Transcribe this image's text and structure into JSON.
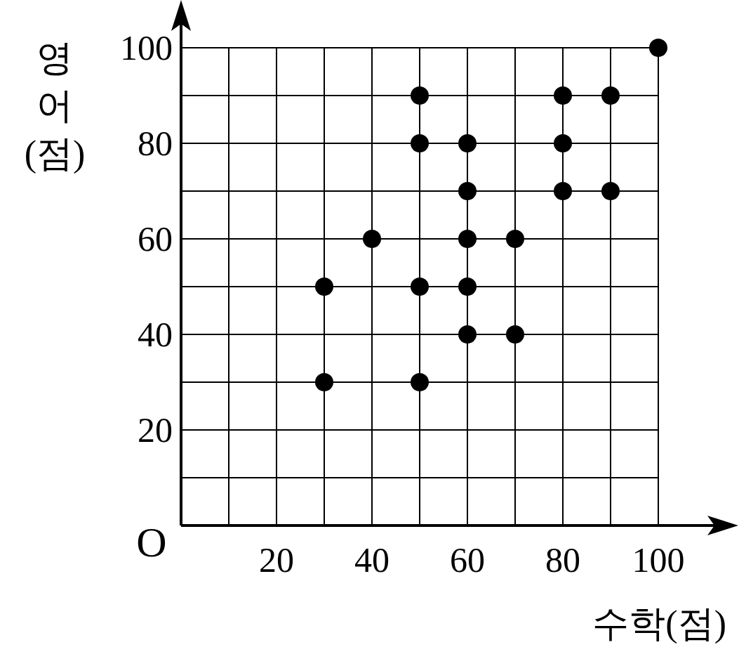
{
  "chart_data": {
    "type": "scatter",
    "xlabel": "수학(점)",
    "ylabel": "영어(점)",
    "xlim": [
      0,
      100
    ],
    "ylim": [
      0,
      100
    ],
    "annotations": [
      "O"
    ],
    "xticks": [
      {
        "value": 10,
        "label": null
      },
      20,
      {
        "value": 30,
        "label": null
      },
      40,
      {
        "value": 50,
        "label": null
      },
      60,
      {
        "value": 70,
        "label": null
      },
      80,
      {
        "value": 90,
        "label": null
      },
      100
    ],
    "yticks": [
      {
        "value": 10,
        "label": null
      },
      20,
      {
        "value": 30,
        "label": null
      },
      40,
      {
        "value": 50,
        "label": null
      },
      60,
      {
        "value": 70,
        "label": null
      },
      80,
      {
        "value": 90,
        "label": null
      },
      100
    ],
    "grid": true,
    "marker": "circle",
    "series": [
      {
        "color": "#000000",
        "x": [
          30,
          30,
          40,
          50,
          50,
          50,
          50,
          60,
          60,
          60,
          60,
          60,
          70,
          70,
          80,
          80,
          80,
          90,
          90,
          100
        ],
        "values": [
          50,
          30,
          60,
          90,
          80,
          50,
          30,
          80,
          70,
          60,
          50,
          40,
          60,
          40,
          90,
          80,
          70,
          90,
          70,
          100
        ]
      }
    ]
  }
}
